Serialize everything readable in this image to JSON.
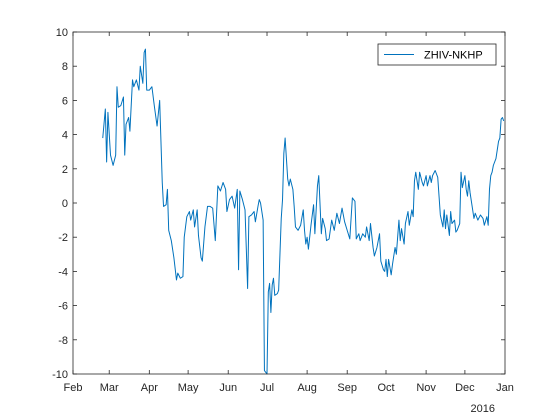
{
  "chart_data": {
    "type": "line",
    "title": "",
    "xlabel": "",
    "ylabel": "",
    "x_tick_labels": [
      "Feb",
      "Mar",
      "Apr",
      "May",
      "Jun",
      "Jul",
      "Aug",
      "Sep",
      "Oct",
      "Nov",
      "Dec",
      "Jan"
    ],
    "x_tick_dates": [
      "2015-02-01",
      "2015-03-01",
      "2015-04-01",
      "2015-05-01",
      "2015-06-01",
      "2015-07-01",
      "2015-08-01",
      "2015-09-01",
      "2015-10-01",
      "2015-11-01",
      "2015-12-01",
      "2016-01-01"
    ],
    "x_secondary_label": "2016",
    "xlim": [
      "2015-02-01",
      "2016-01-01"
    ],
    "ylim": [
      -10,
      10
    ],
    "y_ticks": [
      -10,
      -8,
      -6,
      -4,
      -2,
      0,
      2,
      4,
      6,
      8,
      10
    ],
    "grid": false,
    "legend": "top-right",
    "series": [
      {
        "name": "ZHIV-NKHP",
        "color": "#0072BD",
        "points": [
          [
            "2015-02-24",
            3.8
          ],
          [
            "2015-02-26",
            5.5
          ],
          [
            "2015-02-27",
            2.4
          ],
          [
            "2015-02-28",
            5.3
          ],
          [
            "2015-03-02",
            2.8
          ],
          [
            "2015-03-04",
            2.2
          ],
          [
            "2015-03-06",
            2.8
          ],
          [
            "2015-03-07",
            6.8
          ],
          [
            "2015-03-08",
            5.6
          ],
          [
            "2015-03-10",
            5.7
          ],
          [
            "2015-03-12",
            6.2
          ],
          [
            "2015-03-13",
            2.8
          ],
          [
            "2015-03-14",
            4.6
          ],
          [
            "2015-03-16",
            5.0
          ],
          [
            "2015-03-17",
            4.2
          ],
          [
            "2015-03-19",
            7.2
          ],
          [
            "2015-03-20",
            6.8
          ],
          [
            "2015-03-22",
            7.2
          ],
          [
            "2015-03-24",
            6.6
          ],
          [
            "2015-03-25",
            8.0
          ],
          [
            "2015-03-27",
            7.0
          ],
          [
            "2015-03-28",
            8.8
          ],
          [
            "2015-03-29",
            9.0
          ],
          [
            "2015-03-30",
            6.6
          ],
          [
            "2015-04-01",
            6.6
          ],
          [
            "2015-04-03",
            6.8
          ],
          [
            "2015-04-05",
            5.6
          ],
          [
            "2015-04-07",
            4.5
          ],
          [
            "2015-04-09",
            6.0
          ],
          [
            "2015-04-11",
            1.2
          ],
          [
            "2015-04-12",
            -0.2
          ],
          [
            "2015-04-14",
            -0.1
          ],
          [
            "2015-04-15",
            0.8
          ],
          [
            "2015-04-16",
            -1.6
          ],
          [
            "2015-04-18",
            -2.2
          ],
          [
            "2015-04-20",
            -3.2
          ],
          [
            "2015-04-22",
            -4.5
          ],
          [
            "2015-04-23",
            -4.1
          ],
          [
            "2015-04-25",
            -4.4
          ],
          [
            "2015-04-27",
            -4.3
          ],
          [
            "2015-04-28",
            -2.0
          ],
          [
            "2015-04-30",
            -0.8
          ],
          [
            "2015-05-02",
            -0.5
          ],
          [
            "2015-05-03",
            -1.0
          ],
          [
            "2015-05-05",
            -0.4
          ],
          [
            "2015-05-06",
            -1.4
          ],
          [
            "2015-05-08",
            -0.4
          ],
          [
            "2015-05-09",
            -1.9
          ],
          [
            "2015-05-11",
            -3.2
          ],
          [
            "2015-05-12",
            -3.4
          ],
          [
            "2015-05-14",
            -1.4
          ],
          [
            "2015-05-16",
            -0.2
          ],
          [
            "2015-05-18",
            -0.2
          ],
          [
            "2015-05-20",
            -0.3
          ],
          [
            "2015-05-22",
            -2.2
          ],
          [
            "2015-05-24",
            1.0
          ],
          [
            "2015-05-26",
            0.7
          ],
          [
            "2015-05-28",
            1.2
          ],
          [
            "2015-05-30",
            0.8
          ],
          [
            "2015-05-31",
            -0.5
          ],
          [
            "2015-06-02",
            0.2
          ],
          [
            "2015-06-04",
            0.4
          ],
          [
            "2015-06-06",
            -0.3
          ],
          [
            "2015-06-08",
            0.8
          ],
          [
            "2015-06-09",
            -3.9
          ],
          [
            "2015-06-10",
            0.7
          ],
          [
            "2015-06-12",
            0.2
          ],
          [
            "2015-06-14",
            -0.4
          ],
          [
            "2015-06-16",
            -5.0
          ],
          [
            "2015-06-17",
            -0.8
          ],
          [
            "2015-06-19",
            -0.7
          ],
          [
            "2015-06-21",
            -0.5
          ],
          [
            "2015-06-22",
            -1.1
          ],
          [
            "2015-06-24",
            -0.2
          ],
          [
            "2015-06-25",
            0.2
          ],
          [
            "2015-06-26",
            0.0
          ],
          [
            "2015-06-27",
            -0.5
          ],
          [
            "2015-06-28",
            -1.0
          ],
          [
            "2015-06-29",
            -9.8
          ],
          [
            "2015-07-01",
            -10.0
          ],
          [
            "2015-07-02",
            -5.2
          ],
          [
            "2015-07-03",
            -4.7
          ],
          [
            "2015-07-04",
            -6.4
          ],
          [
            "2015-07-05",
            -4.8
          ],
          [
            "2015-07-06",
            -4.4
          ],
          [
            "2015-07-07",
            -5.4
          ],
          [
            "2015-07-09",
            -5.3
          ],
          [
            "2015-07-10",
            -5.1
          ],
          [
            "2015-07-12",
            -0.9
          ],
          [
            "2015-07-13",
            0.2
          ],
          [
            "2015-07-14",
            2.9
          ],
          [
            "2015-07-15",
            3.8
          ],
          [
            "2015-07-17",
            1.4
          ],
          [
            "2015-07-18",
            1.0
          ],
          [
            "2015-07-19",
            1.4
          ],
          [
            "2015-07-21",
            0.8
          ],
          [
            "2015-07-22",
            -0.2
          ],
          [
            "2015-07-23",
            -1.4
          ],
          [
            "2015-07-25",
            -1.6
          ],
          [
            "2015-07-27",
            -1.3
          ],
          [
            "2015-07-29",
            -0.4
          ],
          [
            "2015-07-30",
            -1.6
          ],
          [
            "2015-07-31",
            -2.4
          ],
          [
            "2015-08-01",
            -2.0
          ],
          [
            "2015-08-02",
            -2.7
          ],
          [
            "2015-08-04",
            -1.3
          ],
          [
            "2015-08-06",
            -0.1
          ],
          [
            "2015-08-07",
            -1.8
          ],
          [
            "2015-08-09",
            1.0
          ],
          [
            "2015-08-10",
            1.6
          ],
          [
            "2015-08-12",
            -1.8
          ],
          [
            "2015-08-13",
            -0.9
          ],
          [
            "2015-08-15",
            -1.5
          ],
          [
            "2015-08-16",
            -2.2
          ],
          [
            "2015-08-18",
            -2.1
          ],
          [
            "2015-08-20",
            -1.0
          ],
          [
            "2015-08-22",
            -1.6
          ],
          [
            "2015-08-24",
            -0.6
          ],
          [
            "2015-08-26",
            -1.2
          ],
          [
            "2015-08-28",
            -0.3
          ],
          [
            "2015-08-30",
            -1.1
          ],
          [
            "2015-09-01",
            -1.6
          ],
          [
            "2015-09-03",
            -2.1
          ],
          [
            "2015-09-05",
            0.3
          ],
          [
            "2015-09-07",
            0.1
          ],
          [
            "2015-09-08",
            -2.1
          ],
          [
            "2015-09-10",
            -1.8
          ],
          [
            "2015-09-11",
            -2.2
          ],
          [
            "2015-09-13",
            -1.8
          ],
          [
            "2015-09-15",
            -2.0
          ],
          [
            "2015-09-16",
            -1.4
          ],
          [
            "2015-09-18",
            -2.2
          ],
          [
            "2015-09-19",
            -1.2
          ],
          [
            "2015-09-21",
            -2.6
          ],
          [
            "2015-09-22",
            -3.1
          ],
          [
            "2015-09-24",
            -2.6
          ],
          [
            "2015-09-26",
            -1.8
          ],
          [
            "2015-09-27",
            -3.4
          ],
          [
            "2015-09-29",
            -3.9
          ],
          [
            "2015-09-30",
            -4.0
          ],
          [
            "2015-10-01",
            -3.3
          ],
          [
            "2015-10-02",
            -4.3
          ],
          [
            "2015-10-03",
            -3.3
          ],
          [
            "2015-10-05",
            -4.2
          ],
          [
            "2015-10-06",
            -3.6
          ],
          [
            "2015-10-08",
            -2.6
          ],
          [
            "2015-10-09",
            -3.0
          ],
          [
            "2015-10-11",
            -1.0
          ],
          [
            "2015-10-12",
            -2.2
          ],
          [
            "2015-10-13",
            -1.5
          ],
          [
            "2015-10-15",
            -2.4
          ],
          [
            "2015-10-16",
            -1.2
          ],
          [
            "2015-10-18",
            -0.5
          ],
          [
            "2015-10-19",
            -1.3
          ],
          [
            "2015-10-21",
            -0.4
          ],
          [
            "2015-10-22",
            -0.8
          ],
          [
            "2015-10-23",
            1.3
          ],
          [
            "2015-10-24",
            1.8
          ],
          [
            "2015-10-26",
            0.8
          ],
          [
            "2015-10-27",
            1.8
          ],
          [
            "2015-10-29",
            1.2
          ],
          [
            "2015-10-30",
            1.0
          ],
          [
            "2015-11-01",
            1.6
          ],
          [
            "2015-11-02",
            1.0
          ],
          [
            "2015-11-04",
            1.6
          ],
          [
            "2015-11-05",
            1.2
          ],
          [
            "2015-11-06",
            1.6
          ],
          [
            "2015-11-08",
            1.9
          ],
          [
            "2015-11-10",
            1.5
          ],
          [
            "2015-11-11",
            0.4
          ],
          [
            "2015-11-12",
            -0.7
          ],
          [
            "2015-11-14",
            -1.4
          ],
          [
            "2015-11-15",
            -0.4
          ],
          [
            "2015-11-16",
            -1.5
          ],
          [
            "2015-11-17",
            -0.7
          ],
          [
            "2015-11-19",
            -1.9
          ],
          [
            "2015-11-20",
            -0.5
          ],
          [
            "2015-11-21",
            -1.2
          ],
          [
            "2015-11-23",
            -1.0
          ],
          [
            "2015-11-24",
            -1.7
          ],
          [
            "2015-11-25",
            -1.6
          ],
          [
            "2015-11-27",
            -1.2
          ],
          [
            "2015-11-28",
            1.8
          ],
          [
            "2015-11-29",
            0.9
          ],
          [
            "2015-12-01",
            1.6
          ],
          [
            "2015-12-02",
            0.8
          ],
          [
            "2015-12-03",
            0.4
          ],
          [
            "2015-12-04",
            1.3
          ],
          [
            "2015-12-05",
            0.6
          ],
          [
            "2015-12-07",
            -0.4
          ],
          [
            "2015-12-08",
            -0.9
          ],
          [
            "2015-12-09",
            -0.6
          ],
          [
            "2015-12-11",
            -1.0
          ],
          [
            "2015-12-13",
            -0.7
          ],
          [
            "2015-12-15",
            -0.9
          ],
          [
            "2015-12-16",
            -1.3
          ],
          [
            "2015-12-18",
            -0.8
          ],
          [
            "2015-12-19",
            -1.3
          ],
          [
            "2015-12-20",
            0.8
          ],
          [
            "2015-12-21",
            1.6
          ],
          [
            "2015-12-22",
            1.8
          ],
          [
            "2015-12-23",
            2.2
          ],
          [
            "2015-12-25",
            2.6
          ],
          [
            "2015-12-26",
            3.1
          ],
          [
            "2015-12-27",
            3.6
          ],
          [
            "2015-12-28",
            3.8
          ],
          [
            "2015-12-29",
            4.9
          ],
          [
            "2015-12-30",
            5.0
          ],
          [
            "2015-12-31",
            4.8
          ]
        ]
      }
    ]
  }
}
